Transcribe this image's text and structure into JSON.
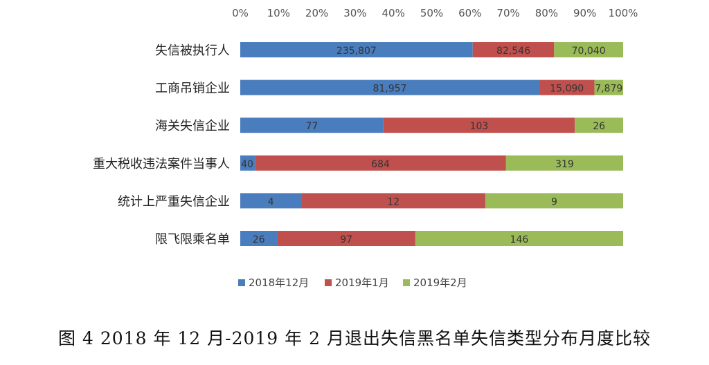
{
  "chart_data": {
    "type": "bar",
    "stacked": "percent",
    "orientation": "horizontal",
    "categories": [
      "失信被执行人",
      "工商吊销企业",
      "海关失信企业",
      "重大税收违法案件当事人",
      "统计上严重失信企业",
      "限飞限乘名单"
    ],
    "series": [
      {
        "name": "2018年12月",
        "color": "#4a7dbd",
        "values": [
          235807,
          81957,
          77,
          40,
          4,
          26
        ],
        "labels": [
          "235,807",
          "81,957",
          "77",
          "40",
          "4",
          "26"
        ]
      },
      {
        "name": "2019年1月",
        "color": "#c0504d",
        "values": [
          82546,
          15090,
          103,
          684,
          12,
          97
        ],
        "labels": [
          "82,546",
          "15,090",
          "103",
          "684",
          "12",
          "97"
        ]
      },
      {
        "name": "2019年2月",
        "color": "#9bbb59",
        "values": [
          70040,
          7879,
          26,
          319,
          9,
          146
        ],
        "labels": [
          "70,040",
          "7,879",
          "26",
          "319",
          "9",
          "146"
        ]
      }
    ],
    "xticks": [
      "0%",
      "10%",
      "20%",
      "30%",
      "40%",
      "50%",
      "60%",
      "70%",
      "80%",
      "90%",
      "100%"
    ],
    "xlim": [
      0,
      100
    ],
    "grid": false,
    "legend_position": "bottom"
  },
  "caption": "图 4    2018 年 12 月-2019 年 2 月退出失信黑名单失信类型分布月度比较"
}
